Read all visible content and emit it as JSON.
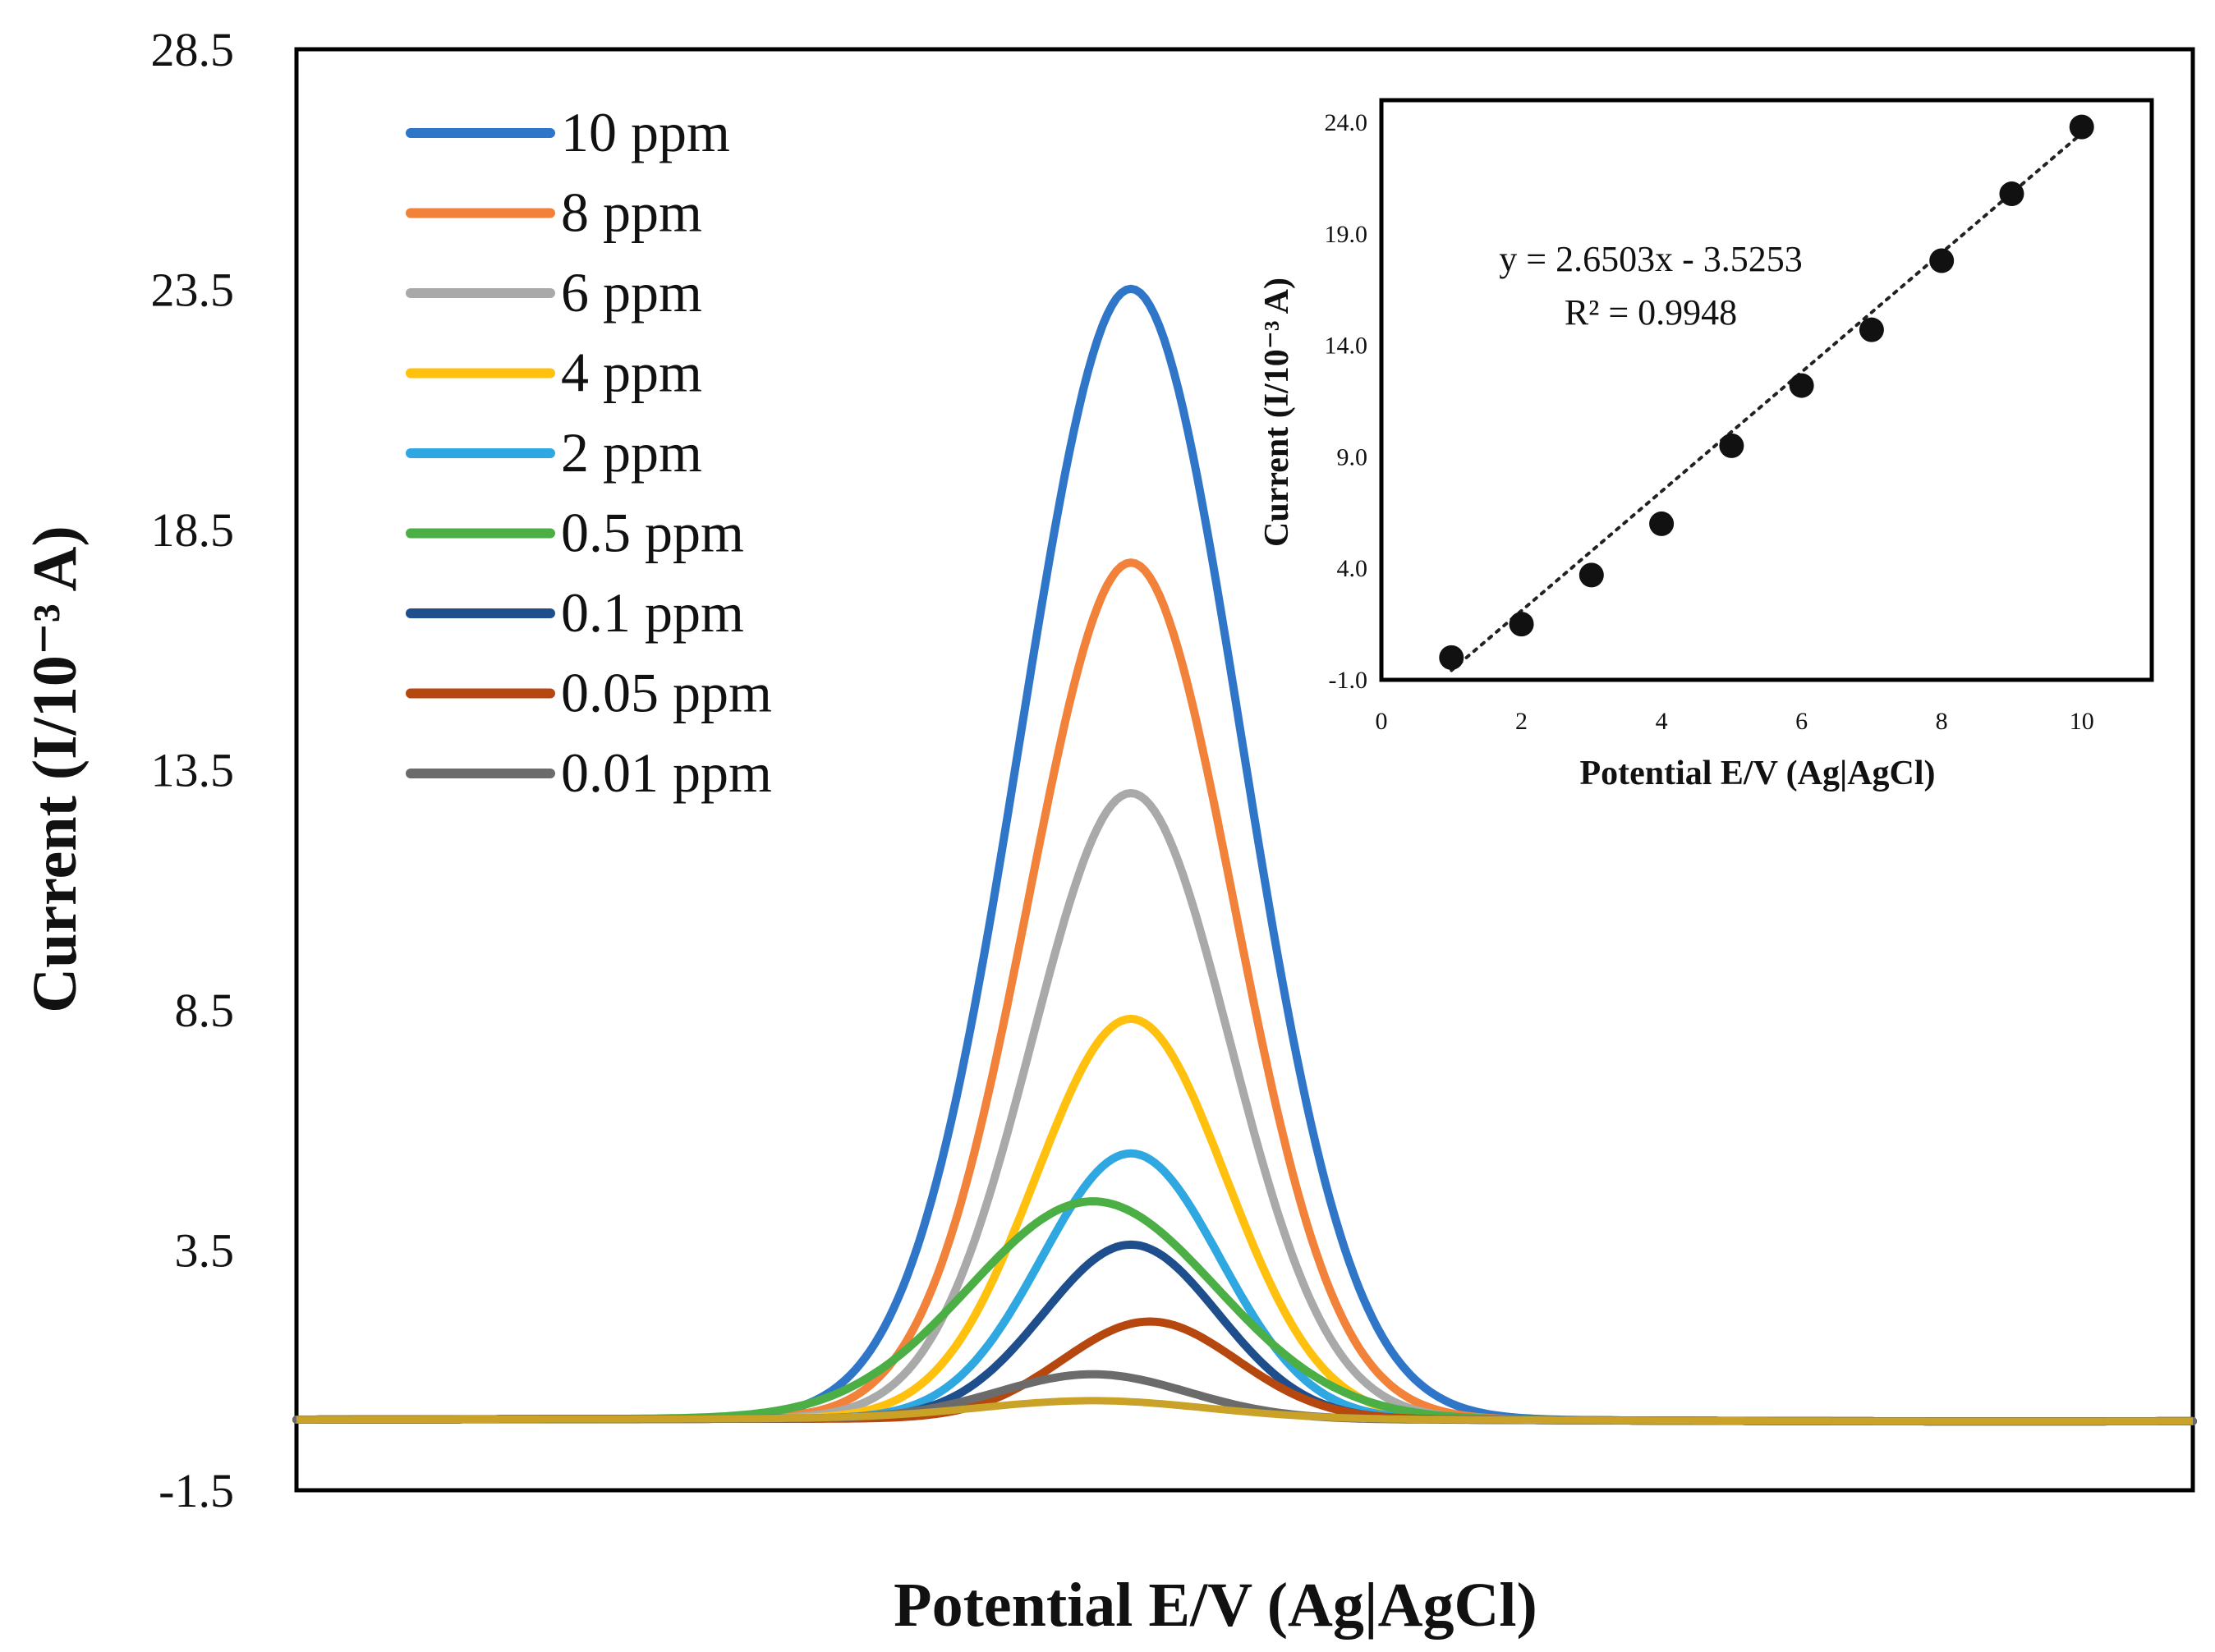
{
  "chart_data": [
    {
      "id": "main",
      "type": "line",
      "title": "",
      "xlabel": "Potential E/V (Ag|AgCl)",
      "ylabel": "Current (I/10⁻³ A)",
      "ylim": [
        -1.5,
        28.5
      ],
      "xlim": [
        0,
        1
      ],
      "yticks": [
        "28.5",
        "23.5",
        "18.5",
        "13.5",
        "8.5",
        "3.5",
        "-1.5"
      ],
      "yticks_values": [
        28.5,
        23.5,
        18.5,
        13.5,
        8.5,
        3.5,
        -1.5
      ],
      "grid": false,
      "legend_position": "top-left",
      "series": [
        {
          "name": "10 ppm",
          "color": "#2F76C9",
          "peak_x": 0.44,
          "peak_y": 23.5,
          "width": 0.058
        },
        {
          "name": "8 ppm",
          "color": "#F2813A",
          "peak_x": 0.44,
          "peak_y": 17.8,
          "width": 0.054
        },
        {
          "name": "6 ppm",
          "color": "#A9A9A9",
          "peak_x": 0.44,
          "peak_y": 13.0,
          "width": 0.052
        },
        {
          "name": "4 ppm",
          "color": "#FFC10E",
          "peak_x": 0.44,
          "peak_y": 8.3,
          "width": 0.05
        },
        {
          "name": "2 ppm",
          "color": "#2FA7E0",
          "peak_x": 0.44,
          "peak_y": 5.5,
          "width": 0.047
        },
        {
          "name": "0.5 ppm",
          "color": "#4CAF45",
          "peak_x": 0.42,
          "peak_y": 4.5,
          "width": 0.065
        },
        {
          "name": "0.1 ppm",
          "color": "#1F4E8C",
          "peak_x": 0.44,
          "peak_y": 3.6,
          "width": 0.046
        },
        {
          "name": "0.05 ppm",
          "color": "#B5470F",
          "peak_x": 0.45,
          "peak_y": 2.0,
          "width": 0.046
        },
        {
          "name": "0.01 ppm",
          "color": "#6B6B6B",
          "peak_x": 0.42,
          "peak_y": 0.9,
          "width": 0.05
        }
      ],
      "baseline": {
        "name": "baseline",
        "color": "#C9A227",
        "peak_x": 0.42,
        "peak_y": 0.35,
        "width": 0.06
      },
      "baseline_y": -0.03
    },
    {
      "id": "inset",
      "type": "scatter",
      "title": "",
      "xlabel": "Potential E/V (Ag|AgCl)",
      "ylabel": "Current (I/10⁻³ A)",
      "xlim": [
        0,
        11
      ],
      "ylim": [
        -1.0,
        25.0
      ],
      "xticks": [
        "0",
        "2",
        "4",
        "6",
        "8",
        "10"
      ],
      "xticks_values": [
        0,
        2,
        4,
        6,
        8,
        10
      ],
      "yticks": [
        "24.0",
        "19.0",
        "14.0",
        "9.0",
        "4.0",
        "-1.0"
      ],
      "yticks_values": [
        24.0,
        19.0,
        14.0,
        9.0,
        4.0,
        -1.0
      ],
      "x": [
        1,
        2,
        3,
        4,
        5,
        6,
        7,
        8,
        9,
        10
      ],
      "y": [
        0.0,
        1.5,
        3.7,
        6.0,
        9.5,
        12.2,
        14.7,
        17.8,
        20.8,
        23.8
      ],
      "trendline": {
        "slope": 2.6503,
        "intercept": -3.5253,
        "x_from": 1,
        "x_to": 10
      },
      "equation": "y = 2.6503x - 3.5253",
      "r_squared": "R² = 0.9948"
    }
  ]
}
